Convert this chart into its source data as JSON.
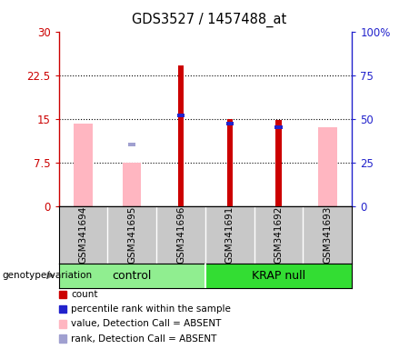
{
  "title": "GDS3527 / 1457488_at",
  "samples": [
    "GSM341694",
    "GSM341695",
    "GSM341696",
    "GSM341691",
    "GSM341692",
    "GSM341693"
  ],
  "ylim_left": [
    0,
    30
  ],
  "ylim_right": [
    0,
    100
  ],
  "yticks_left": [
    0,
    7.5,
    15,
    22.5,
    30
  ],
  "ytick_labels_left": [
    "0",
    "7.5",
    "15",
    "22.5",
    "30"
  ],
  "ytick_labels_right": [
    "0",
    "25",
    "50",
    "75",
    "100%"
  ],
  "red_bars": [
    0,
    0,
    24.2,
    15.0,
    14.8,
    0
  ],
  "blue_markers": [
    0,
    0,
    15.5,
    14.2,
    13.5,
    0
  ],
  "pink_bars": [
    14.2,
    7.5,
    0,
    0,
    0,
    13.5
  ],
  "lavender_markers": [
    0,
    10.5,
    0,
    0,
    0,
    0
  ],
  "red_color": "#cc0000",
  "blue_color": "#2222cc",
  "pink_color": "#ffb6c1",
  "lavender_color": "#a0a0d0",
  "left_axis_color": "#cc0000",
  "right_axis_color": "#2222cc",
  "legend_items": [
    "count",
    "percentile rank within the sample",
    "value, Detection Call = ABSENT",
    "rank, Detection Call = ABSENT"
  ],
  "legend_colors": [
    "#cc0000",
    "#2222cc",
    "#ffb6c1",
    "#a0a0d0"
  ],
  "label_bg": "#c8c8c8",
  "ctrl_color": "#90ee90",
  "krap_color": "#33dd33",
  "dotted_levels": [
    7.5,
    15,
    22.5
  ]
}
